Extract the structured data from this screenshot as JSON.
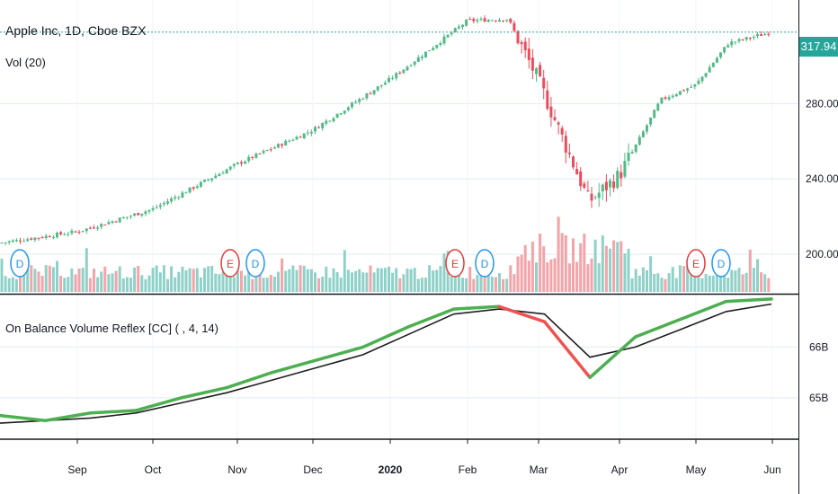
{
  "header": {
    "symbol_title": "Apple Inc, 1D, Cboe BZX",
    "volume_label": "Vol (20)",
    "indicator_label": "On Balance Volume Reflex [CC] ( , 4, 14)"
  },
  "price_badge": {
    "value": "317.94",
    "color": "#26a69a"
  },
  "colors": {
    "up": "#53b987",
    "down": "#eb4d5c",
    "vol_up": "#8fd1c8",
    "vol_down": "#f4a3a9",
    "obv_up": "#4caf50",
    "obv_down": "#ef5350",
    "signal": "#1f1f1f",
    "grid": "#e1ecf2",
    "earnings": "#e53935",
    "dividend": "#2196f3"
  },
  "chart_data": [
    {
      "type": "candlestick",
      "title": "Apple Inc, 1D, Cboe BZX",
      "x_ticks": [
        "Sep",
        "Oct",
        "Nov",
        "Dec",
        "2020",
        "Feb",
        "Mar",
        "Apr",
        "May",
        "Jun"
      ],
      "y_ticks": [
        "200.00",
        "240.00",
        "280.00"
      ],
      "ylim": [
        180,
        335
      ],
      "last_price": 317.94,
      "close_path": [
        [
          "start",
          206
        ],
        [
          "Sep",
          212
        ],
        [
          "Oct",
          224
        ],
        [
          "Nov",
          248
        ],
        [
          "Dec",
          266
        ],
        [
          "2020",
          293
        ],
        [
          "Feb",
          324
        ],
        [
          "Feb-mid",
          325
        ],
        [
          "Mar",
          292
        ],
        [
          "Mar-low",
          228
        ],
        [
          "Apr",
          242
        ],
        [
          "Apr-mid",
          282
        ],
        [
          "May",
          290
        ],
        [
          "May-mid",
          312
        ],
        [
          "end",
          317.94
        ]
      ],
      "events": [
        {
          "label": "D",
          "kind": "dividend"
        },
        {
          "label": "E",
          "kind": "earnings"
        },
        {
          "label": "D",
          "kind": "dividend"
        },
        {
          "label": "E",
          "kind": "earnings"
        },
        {
          "label": "D",
          "kind": "dividend"
        },
        {
          "label": "E",
          "kind": "earnings"
        },
        {
          "label": "D",
          "kind": "dividend"
        }
      ]
    },
    {
      "type": "line",
      "title": "On Balance Volume Reflex [CC] ( , 4, 14)",
      "y_ticks": [
        "65B",
        "66B"
      ],
      "ylim": [
        64.2,
        67.0
      ],
      "series": [
        {
          "role": "obv",
          "values": [
            64.65,
            64.55,
            64.7,
            64.75,
            65.0,
            65.2,
            65.5,
            65.75,
            66.0,
            66.4,
            66.75,
            66.8,
            66.5,
            65.4,
            66.2,
            66.55,
            66.9,
            66.95
          ]
        },
        {
          "role": "signal",
          "values": [
            64.5,
            64.55,
            64.6,
            64.7,
            64.9,
            65.1,
            65.35,
            65.6,
            65.85,
            66.25,
            66.65,
            66.75,
            66.65,
            65.8,
            66.0,
            66.35,
            66.7,
            66.85
          ]
        }
      ]
    }
  ]
}
